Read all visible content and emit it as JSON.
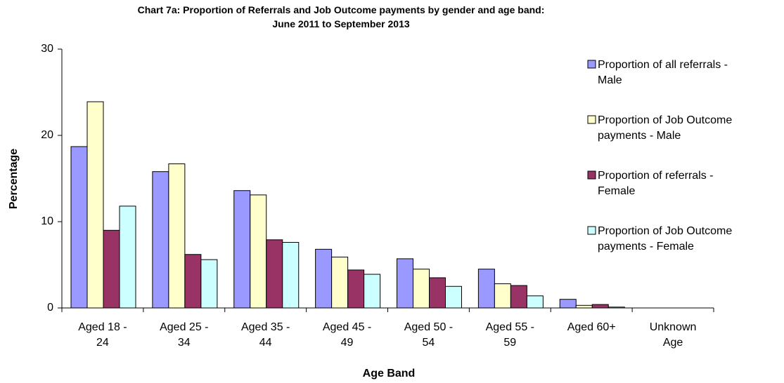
{
  "chart_data": {
    "type": "bar",
    "title": "Chart 7a: Proportion of Referrals and Job Outcome payments by gender and age band:\nJune 2011 to September 2013",
    "x_label": "Age Band",
    "y_label": "Percentage",
    "categories": [
      "Aged 18 -\n24",
      "Aged 25 -\n34",
      "Aged 35 -\n44",
      "Aged 45 -\n49",
      "Aged 50 -\n54",
      "Aged 55 -\n59",
      "Aged 60+",
      "Unknown\nAge"
    ],
    "series": [
      {
        "name": "Proportion of all referrals -\nMale",
        "color": "#9999ff",
        "values": [
          18.7,
          15.8,
          13.6,
          6.8,
          5.7,
          4.5,
          1.0,
          0
        ]
      },
      {
        "name": "Proportion of Job Outcome\npayments - Male",
        "color": "#ffffcc",
        "values": [
          23.9,
          16.7,
          13.1,
          5.9,
          4.5,
          2.8,
          0.3,
          0
        ]
      },
      {
        "name": "Proportion of referrals -\nFemale",
        "color": "#993366",
        "values": [
          9.0,
          6.2,
          7.9,
          4.4,
          3.5,
          2.6,
          0.4,
          0
        ]
      },
      {
        "name": "Proportion of Job Outcome\npayments - Female",
        "color": "#ccffff",
        "values": [
          11.8,
          5.6,
          7.6,
          3.9,
          2.5,
          1.4,
          0.1,
          0
        ]
      }
    ],
    "ylim": [
      0,
      30
    ],
    "yticks": [
      0,
      10,
      20,
      30
    ],
    "legend": "right"
  }
}
